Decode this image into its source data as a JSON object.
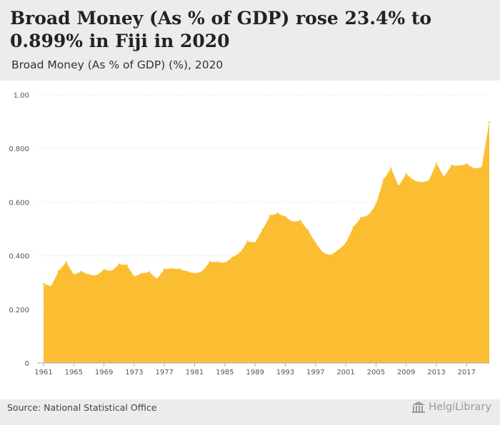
{
  "header": {
    "title": "Broad Money (As % of GDP) rose 23.4% to 0.899% in Fiji in 2020",
    "subtitle": "Broad Money (As % of GDP) (%), 2020"
  },
  "footer": {
    "source": "Source: National Statistical Office",
    "brand": "HelgiLibrary",
    "brand_icon": "building-icon"
  },
  "colors": {
    "area_fill": "#fbbe32",
    "grid": "#dddddd",
    "axis_text": "#555555"
  },
  "chart_data": {
    "type": "area",
    "title": "Broad Money (As % of GDP) rose 23.4% to 0.899% in Fiji in 2020",
    "subtitle": "Broad Money (As % of GDP) (%), 2020",
    "xlabel": "",
    "ylabel": "",
    "ylim": [
      0,
      1.0
    ],
    "grid": true,
    "y_ticks": [
      "0",
      "0.200",
      "0.400",
      "0.600",
      "0.800",
      "1.00"
    ],
    "y_tick_values": [
      0,
      0.2,
      0.4,
      0.6,
      0.8,
      1.0
    ],
    "x_ticks": [
      "1961",
      "1965",
      "1969",
      "1973",
      "1977",
      "1981",
      "1985",
      "1989",
      "1993",
      "1997",
      "2001",
      "2005",
      "2009",
      "2013",
      "2017"
    ],
    "x": [
      1961,
      1962,
      1963,
      1964,
      1965,
      1966,
      1967,
      1968,
      1969,
      1970,
      1971,
      1972,
      1973,
      1974,
      1975,
      1976,
      1977,
      1978,
      1979,
      1980,
      1981,
      1982,
      1983,
      1984,
      1985,
      1986,
      1987,
      1988,
      1989,
      1990,
      1991,
      1992,
      1993,
      1994,
      1995,
      1996,
      1997,
      1998,
      1999,
      2000,
      2001,
      2002,
      2003,
      2004,
      2005,
      2006,
      2007,
      2008,
      2009,
      2010,
      2011,
      2012,
      2013,
      2014,
      2015,
      2016,
      2017,
      2018,
      2019,
      2020
    ],
    "values": [
      0.295,
      0.286,
      0.343,
      0.376,
      0.329,
      0.341,
      0.329,
      0.326,
      0.348,
      0.343,
      0.368,
      0.365,
      0.322,
      0.334,
      0.339,
      0.313,
      0.35,
      0.352,
      0.35,
      0.341,
      0.334,
      0.341,
      0.377,
      0.376,
      0.373,
      0.394,
      0.411,
      0.453,
      0.449,
      0.498,
      0.55,
      0.558,
      0.545,
      0.526,
      0.531,
      0.495,
      0.448,
      0.411,
      0.402,
      0.421,
      0.446,
      0.506,
      0.542,
      0.551,
      0.591,
      0.684,
      0.726,
      0.66,
      0.705,
      0.681,
      0.673,
      0.68,
      0.745,
      0.694,
      0.737,
      0.735,
      0.742,
      0.725,
      0.73,
      0.899
    ]
  }
}
